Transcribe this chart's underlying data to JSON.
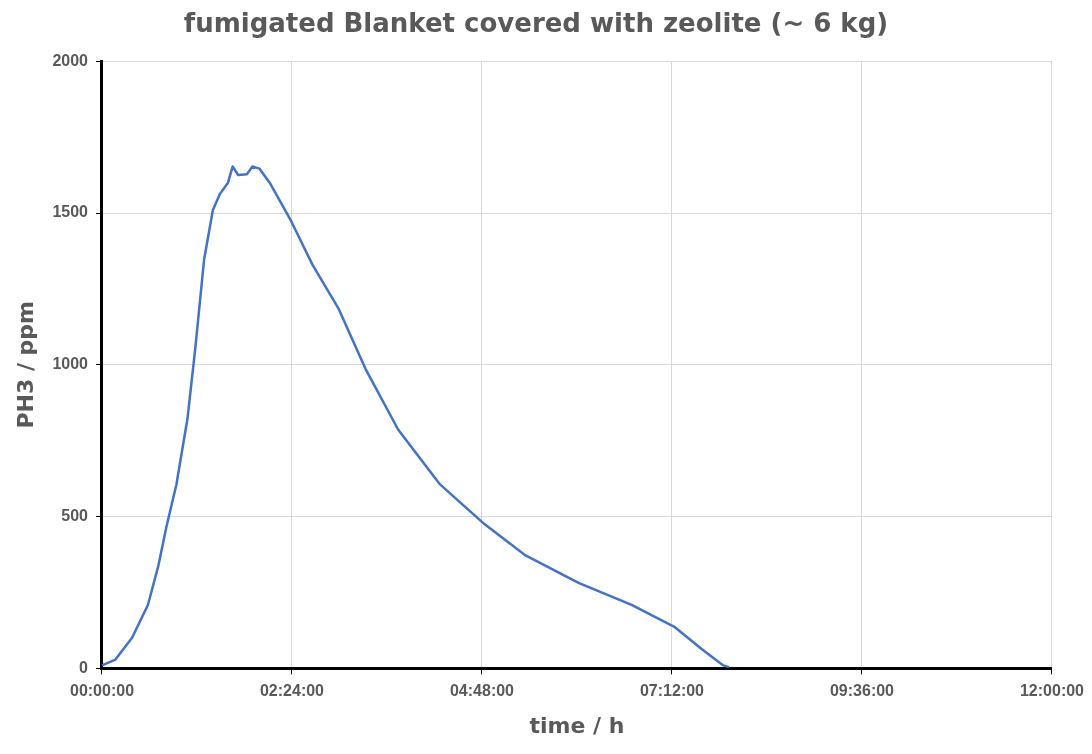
{
  "chart_data": {
    "type": "line",
    "title": "fumigated Blanket covered with zeolite (~ 6 kg)",
    "xlabel": "time / h",
    "ylabel": "PH3 / ppm",
    "xlim": [
      0,
      12
    ],
    "xticks": [
      {
        "value": 0,
        "label": "00:00:00"
      },
      {
        "value": 2.4,
        "label": "02:24:00"
      },
      {
        "value": 4.8,
        "label": "04:48:00"
      },
      {
        "value": 7.2,
        "label": "07:12:00"
      },
      {
        "value": 9.6,
        "label": "09:36:00"
      },
      {
        "value": 12,
        "label": "12:00:00"
      }
    ],
    "ylim": [
      0,
      2000
    ],
    "yticks": [
      0,
      500,
      1000,
      1500,
      2000
    ],
    "grid": true,
    "marker": "none",
    "line_style": "solid",
    "series": [
      {
        "color": "#4472c4",
        "x": [
          0,
          0.17,
          0.38,
          0.58,
          0.71,
          0.81,
          0.94,
          1.08,
          1.18,
          1.29,
          1.4,
          1.49,
          1.59,
          1.65,
          1.72,
          1.83,
          1.9,
          1.99,
          2.12,
          2.39,
          2.66,
          2.99,
          3.33,
          3.74,
          4.27,
          4.81,
          5.35,
          6.02,
          6.69,
          7.23,
          7.57,
          7.84,
          7.92
        ],
        "values": [
          10,
          29,
          101,
          209,
          336,
          462,
          606,
          823,
          1058,
          1347,
          1509,
          1563,
          1599,
          1653,
          1625,
          1628,
          1653,
          1646,
          1599,
          1473,
          1329,
          1184,
          986,
          787,
          606,
          480,
          372,
          282,
          209,
          137,
          65,
          11,
          4
        ]
      }
    ]
  }
}
